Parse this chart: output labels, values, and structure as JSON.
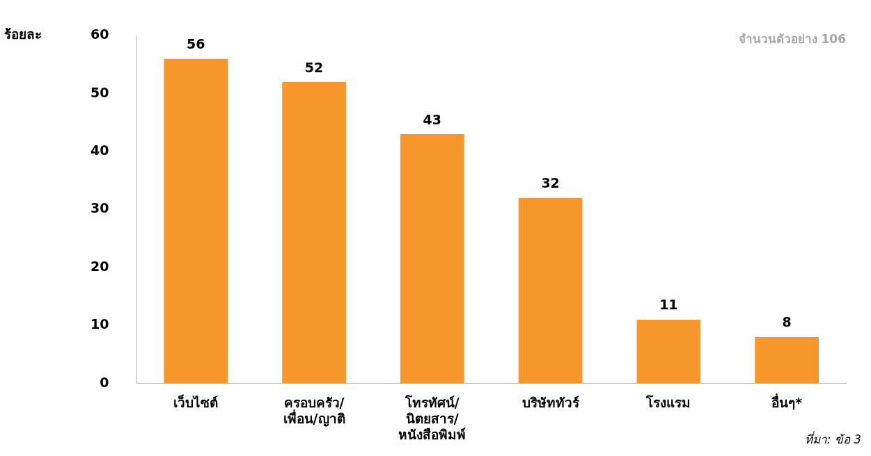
{
  "chart_data": {
    "type": "bar",
    "ylabel": "ร้อยละ",
    "categories": [
      "เว็บไซต์",
      "ครอบครัว/\nเพื่อน/ญาติ",
      "โทรทัศน์/\nนิตยสาร/\nหนังสือพิมพ์",
      "บริษัททัวร์",
      "โรงแรม",
      "อื่นๆ*"
    ],
    "values": [
      56,
      52,
      43,
      32,
      11,
      8
    ],
    "color": "#f7962a",
    "ylim": [
      0,
      60
    ],
    "yticks": [
      0,
      10,
      20,
      30,
      40,
      50,
      60
    ],
    "grid": false,
    "data_labels": true,
    "legend": false,
    "annotations": [
      "จำนวนตัวอย่าง 106",
      "ที่มา: ข้อ 3"
    ]
  }
}
